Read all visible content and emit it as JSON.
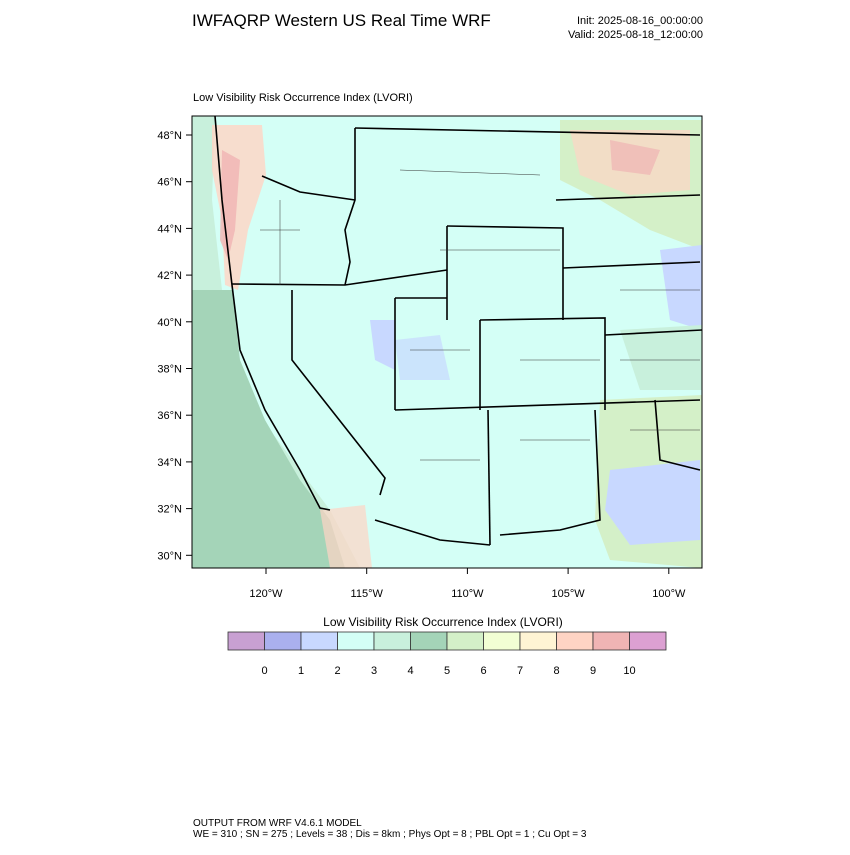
{
  "header": {
    "title": "IWFAQRP Western US Real Time WRF",
    "init": "Init: 2025-08-16_00:00:00",
    "valid": "Valid: 2025-08-18_12:00:00"
  },
  "map": {
    "title": "Low Visibility Risk Occurrence Index   (LVORI)",
    "lat_labels": [
      "48°N",
      "46°N",
      "44°N",
      "42°N",
      "40°N",
      "38°N",
      "36°N",
      "34°N",
      "32°N",
      "30°N"
    ],
    "lon_labels": [
      "120°W",
      "115°W",
      "110°W",
      "105°W",
      "100°W"
    ]
  },
  "colorbar": {
    "title": "Low Visibility Risk Occurrence Index  (LVORI)",
    "labels": [
      0,
      1,
      2,
      3,
      4,
      5,
      6,
      7,
      8,
      9,
      10
    ],
    "colors": [
      "#c8a0d2",
      "#aab0ee",
      "#c8d8ff",
      "#d4fff6",
      "#c8f0dc",
      "#a4d4b8",
      "#d4f0c8",
      "#f2ffd4",
      "#fff4d4",
      "#ffd4c4",
      "#f0b4b4",
      "#dca0d2"
    ]
  },
  "footer": {
    "line1": "OUTPUT FROM WRF V4.6.1 MODEL",
    "line2": "WE = 310 ; SN = 275 ; Levels = 38 ; Dis = 8km ; Phys Opt = 8 ; PBL Opt = 1 ; Cu Opt = 3"
  }
}
